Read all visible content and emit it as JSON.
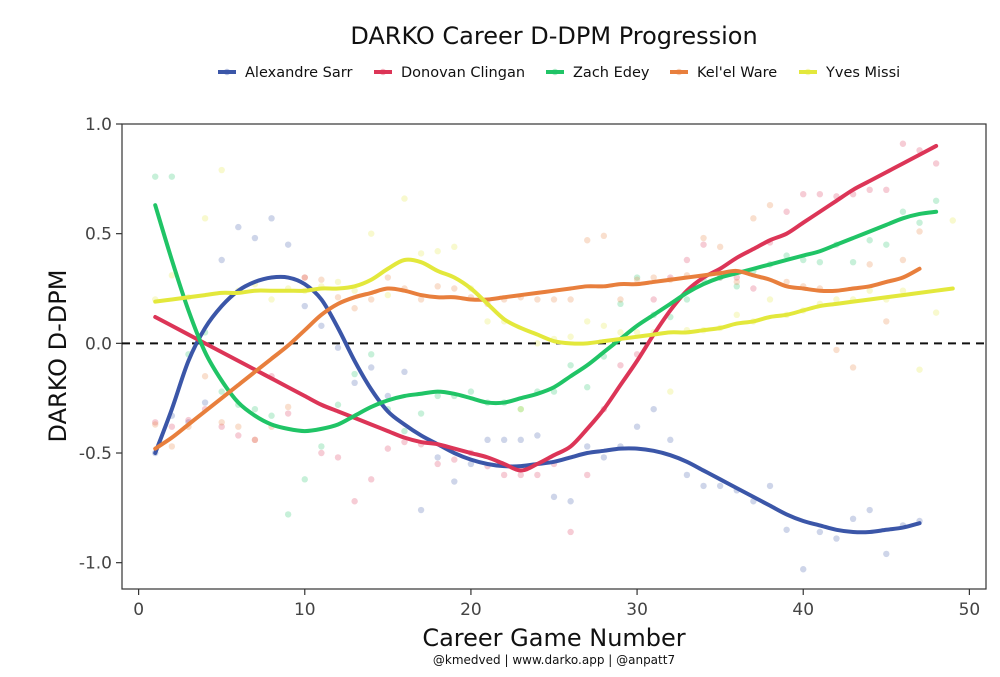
{
  "chart_data": {
    "type": "line",
    "title": "DARKO Career D-DPM Progression",
    "xlabel": "Career Game Number",
    "ylabel": "DARKO D-DPM",
    "caption": "@kmedved | www.darko.app | @anpatt7",
    "xlim": [
      -1,
      51
    ],
    "ylim": [
      -1.12,
      1.0
    ],
    "xticks": [
      0,
      10,
      20,
      30,
      40,
      50
    ],
    "xtick_labels": [
      "0",
      "10",
      "20",
      "30",
      "40",
      "50"
    ],
    "yticks": [
      -1.0,
      -0.5,
      0.0,
      0.5,
      1.0
    ],
    "ytick_labels": [
      "-1.0",
      "-0.5",
      "0.0",
      "0.5",
      "1.0"
    ],
    "reference_line_y": 0.0,
    "grid": false,
    "legend_position": "top",
    "series": [
      {
        "name": "Alexandre Sarr",
        "color": "#3b56a8",
        "x": [
          1,
          2,
          3,
          4,
          5,
          6,
          7,
          8,
          9,
          10,
          11,
          12,
          13,
          14,
          15,
          16,
          17,
          18,
          19,
          20,
          21,
          22,
          23,
          24,
          25,
          26,
          27,
          28,
          29,
          30,
          31,
          32,
          33,
          34,
          35,
          36,
          37,
          38,
          39,
          40,
          41,
          42,
          43,
          44,
          45,
          46,
          47
        ],
        "y": [
          -0.5,
          -0.3,
          -0.08,
          0.07,
          0.17,
          0.24,
          0.28,
          0.3,
          0.3,
          0.27,
          0.2,
          0.07,
          -0.08,
          -0.21,
          -0.31,
          -0.37,
          -0.42,
          -0.46,
          -0.5,
          -0.53,
          -0.55,
          -0.56,
          -0.56,
          -0.55,
          -0.54,
          -0.52,
          -0.5,
          -0.49,
          -0.48,
          -0.48,
          -0.49,
          -0.51,
          -0.54,
          -0.58,
          -0.62,
          -0.66,
          -0.7,
          -0.74,
          -0.78,
          -0.81,
          -0.83,
          -0.85,
          -0.86,
          -0.86,
          -0.85,
          -0.84,
          -0.82
        ],
        "points_x": [
          1,
          2,
          3,
          4,
          5,
          6,
          7,
          8,
          9,
          10,
          11,
          12,
          13,
          14,
          15,
          16,
          17,
          18,
          19,
          20,
          21,
          22,
          23,
          24,
          25,
          26,
          27,
          28,
          29,
          30,
          31,
          32,
          33,
          34,
          35,
          36,
          37,
          38,
          39,
          40,
          41,
          42,
          43,
          44,
          45,
          46,
          47
        ],
        "points_y": [
          -0.5,
          -0.33,
          -0.36,
          -0.27,
          0.38,
          0.53,
          0.48,
          0.57,
          0.45,
          0.17,
          0.08,
          -0.02,
          -0.18,
          -0.11,
          -0.24,
          -0.13,
          -0.76,
          -0.52,
          -0.63,
          -0.55,
          -0.44,
          -0.44,
          -0.44,
          -0.42,
          -0.7,
          -0.72,
          -0.47,
          -0.52,
          -0.47,
          -0.38,
          -0.3,
          -0.44,
          -0.6,
          -0.65,
          -0.65,
          -0.67,
          -0.72,
          -0.65,
          -0.85,
          -1.03,
          -0.86,
          -0.89,
          -0.8,
          -0.76,
          -0.96,
          -0.83,
          -0.81
        ]
      },
      {
        "name": "Donovan Clingan",
        "color": "#dc3557",
        "x": [
          1,
          2,
          3,
          4,
          5,
          6,
          7,
          8,
          9,
          10,
          11,
          12,
          13,
          14,
          15,
          16,
          17,
          18,
          19,
          20,
          21,
          22,
          23,
          24,
          25,
          26,
          27,
          28,
          29,
          30,
          31,
          32,
          33,
          34,
          35,
          36,
          37,
          38,
          39,
          40,
          41,
          42,
          43,
          44,
          45,
          46,
          47,
          48
        ],
        "y": [
          0.12,
          0.08,
          0.04,
          0.0,
          -0.04,
          -0.08,
          -0.12,
          -0.16,
          -0.2,
          -0.24,
          -0.28,
          -0.31,
          -0.34,
          -0.37,
          -0.4,
          -0.43,
          -0.45,
          -0.46,
          -0.48,
          -0.5,
          -0.52,
          -0.55,
          -0.58,
          -0.55,
          -0.51,
          -0.47,
          -0.39,
          -0.3,
          -0.19,
          -0.08,
          0.04,
          0.15,
          0.24,
          0.3,
          0.34,
          0.39,
          0.43,
          0.47,
          0.5,
          0.55,
          0.6,
          0.65,
          0.7,
          0.74,
          0.78,
          0.82,
          0.86,
          0.9
        ],
        "points_x": [
          1,
          2,
          3,
          4,
          5,
          6,
          7,
          8,
          9,
          10,
          11,
          12,
          13,
          14,
          15,
          16,
          17,
          18,
          19,
          20,
          21,
          22,
          23,
          24,
          25,
          26,
          27,
          28,
          29,
          30,
          31,
          32,
          33,
          34,
          35,
          36,
          37,
          38,
          39,
          40,
          41,
          42,
          43,
          44,
          45,
          46,
          47,
          48
        ],
        "points_y": [
          -0.36,
          -0.38,
          -0.35,
          -0.3,
          -0.38,
          -0.42,
          -0.44,
          -0.15,
          -0.32,
          0.3,
          -0.5,
          -0.52,
          -0.72,
          -0.62,
          -0.48,
          -0.45,
          -0.46,
          -0.55,
          -0.53,
          -0.5,
          -0.56,
          -0.6,
          -0.6,
          -0.6,
          -0.55,
          -0.86,
          -0.6,
          -0.3,
          -0.1,
          -0.05,
          0.2,
          0.3,
          0.38,
          0.45,
          0.3,
          0.3,
          0.25,
          0.46,
          0.6,
          0.68,
          0.68,
          0.67,
          0.68,
          0.7,
          0.7,
          0.91,
          0.88,
          0.82
        ]
      },
      {
        "name": "Zach Edey",
        "color": "#20c466",
        "x": [
          1,
          2,
          3,
          4,
          5,
          6,
          7,
          8,
          9,
          10,
          11,
          12,
          13,
          14,
          15,
          16,
          17,
          18,
          19,
          20,
          21,
          22,
          23,
          24,
          25,
          26,
          27,
          28,
          29,
          30,
          31,
          32,
          33,
          34,
          35,
          36,
          37,
          38,
          39,
          40,
          41,
          42,
          43,
          44,
          45,
          46,
          47,
          48
        ],
        "y": [
          0.63,
          0.38,
          0.15,
          -0.04,
          -0.17,
          -0.27,
          -0.33,
          -0.37,
          -0.39,
          -0.4,
          -0.39,
          -0.37,
          -0.33,
          -0.29,
          -0.26,
          -0.24,
          -0.23,
          -0.22,
          -0.23,
          -0.25,
          -0.27,
          -0.27,
          -0.25,
          -0.23,
          -0.2,
          -0.15,
          -0.1,
          -0.04,
          0.02,
          0.08,
          0.13,
          0.18,
          0.23,
          0.27,
          0.3,
          0.32,
          0.34,
          0.36,
          0.38,
          0.4,
          0.42,
          0.45,
          0.48,
          0.51,
          0.54,
          0.57,
          0.59,
          0.6
        ],
        "points_x": [
          1,
          2,
          3,
          4,
          5,
          6,
          7,
          8,
          9,
          10,
          11,
          12,
          13,
          14,
          15,
          16,
          17,
          18,
          19,
          20,
          21,
          22,
          23,
          24,
          25,
          26,
          27,
          28,
          29,
          30,
          31,
          32,
          33,
          34,
          35,
          36,
          37,
          38,
          39,
          40,
          41,
          42,
          43,
          44,
          45,
          46,
          47,
          48
        ],
        "points_y": [
          0.76,
          0.76,
          -0.05,
          0.05,
          -0.22,
          -0.28,
          -0.3,
          -0.33,
          -0.78,
          -0.62,
          -0.47,
          -0.28,
          -0.14,
          -0.05,
          -0.3,
          -0.4,
          -0.32,
          -0.24,
          -0.24,
          -0.22,
          -0.27,
          -0.27,
          -0.3,
          -0.22,
          -0.22,
          -0.1,
          -0.2,
          -0.06,
          0.18,
          0.3,
          0.13,
          0.12,
          0.2,
          0.29,
          0.3,
          0.26,
          0.33,
          0.36,
          0.4,
          0.38,
          0.37,
          0.45,
          0.37,
          0.47,
          0.45,
          0.6,
          0.55,
          0.65
        ]
      },
      {
        "name": "Kel'el Ware",
        "color": "#e87f3d",
        "x": [
          1,
          2,
          3,
          4,
          5,
          6,
          7,
          8,
          9,
          10,
          11,
          12,
          13,
          14,
          15,
          16,
          17,
          18,
          19,
          20,
          21,
          22,
          23,
          24,
          25,
          26,
          27,
          28,
          29,
          30,
          31,
          32,
          33,
          34,
          35,
          36,
          37,
          38,
          39,
          40,
          41,
          42,
          43,
          44,
          45,
          46,
          47
        ],
        "y": [
          -0.48,
          -0.43,
          -0.37,
          -0.31,
          -0.25,
          -0.19,
          -0.13,
          -0.07,
          -0.01,
          0.06,
          0.13,
          0.18,
          0.21,
          0.23,
          0.25,
          0.24,
          0.22,
          0.21,
          0.21,
          0.2,
          0.2,
          0.21,
          0.22,
          0.23,
          0.24,
          0.25,
          0.26,
          0.26,
          0.27,
          0.27,
          0.28,
          0.29,
          0.3,
          0.31,
          0.32,
          0.33,
          0.31,
          0.29,
          0.26,
          0.25,
          0.24,
          0.24,
          0.25,
          0.26,
          0.28,
          0.3,
          0.34
        ],
        "points_x": [
          1,
          2,
          3,
          4,
          5,
          6,
          7,
          8,
          9,
          10,
          11,
          12,
          13,
          14,
          15,
          16,
          17,
          18,
          19,
          20,
          21,
          22,
          23,
          24,
          25,
          26,
          27,
          28,
          29,
          30,
          31,
          32,
          33,
          34,
          35,
          36,
          37,
          38,
          39,
          40,
          41,
          42,
          43,
          44,
          45,
          46,
          47
        ],
        "points_y": [
          -0.37,
          -0.47,
          -0.38,
          -0.15,
          -0.36,
          -0.38,
          -0.44,
          -0.38,
          -0.29,
          0.3,
          0.29,
          0.21,
          0.16,
          0.2,
          0.3,
          0.25,
          0.2,
          0.26,
          0.25,
          0.21,
          0.18,
          0.2,
          0.21,
          0.2,
          0.2,
          0.2,
          0.47,
          0.49,
          0.2,
          0.29,
          0.3,
          0.29,
          0.31,
          0.48,
          0.44,
          0.28,
          0.57,
          0.63,
          0.28,
          0.26,
          0.25,
          -0.03,
          -0.11,
          0.36,
          0.1,
          0.38,
          0.51
        ]
      },
      {
        "name": "Yves Missi",
        "color": "#e3e83c",
        "x": [
          1,
          2,
          3,
          4,
          5,
          6,
          7,
          8,
          9,
          10,
          11,
          12,
          13,
          14,
          15,
          16,
          17,
          18,
          19,
          20,
          21,
          22,
          23,
          24,
          25,
          26,
          27,
          28,
          29,
          30,
          31,
          32,
          33,
          34,
          35,
          36,
          37,
          38,
          39,
          40,
          41,
          42,
          43,
          44,
          45,
          46,
          47,
          48,
          49
        ],
        "y": [
          0.19,
          0.2,
          0.21,
          0.22,
          0.23,
          0.23,
          0.24,
          0.24,
          0.24,
          0.24,
          0.25,
          0.25,
          0.26,
          0.29,
          0.34,
          0.38,
          0.37,
          0.33,
          0.3,
          0.25,
          0.18,
          0.11,
          0.07,
          0.04,
          0.01,
          0.0,
          0.0,
          0.01,
          0.02,
          0.03,
          0.04,
          0.05,
          0.05,
          0.06,
          0.07,
          0.09,
          0.1,
          0.12,
          0.13,
          0.15,
          0.17,
          0.18,
          0.19,
          0.2,
          0.21,
          0.22,
          0.23,
          0.24,
          0.25
        ],
        "points_x": [
          1,
          2,
          3,
          4,
          5,
          6,
          7,
          8,
          9,
          10,
          11,
          12,
          13,
          14,
          15,
          16,
          17,
          18,
          19,
          20,
          21,
          22,
          23,
          24,
          25,
          26,
          27,
          28,
          29,
          30,
          31,
          32,
          33,
          34,
          35,
          36,
          37,
          38,
          39,
          40,
          41,
          42,
          43,
          44,
          45,
          46,
          47,
          48,
          49
        ],
        "points_y": [
          0.2,
          0.31,
          0.21,
          0.57,
          0.79,
          0.24,
          0.27,
          0.2,
          0.25,
          0.24,
          0.26,
          0.28,
          0.24,
          0.5,
          0.22,
          0.66,
          0.41,
          0.42,
          0.44,
          0.25,
          0.1,
          0.1,
          -0.3,
          0.0,
          0.02,
          0.03,
          0.1,
          0.08,
          0.05,
          0.05,
          0.05,
          -0.22,
          0.06,
          0.06,
          0.07,
          0.13,
          0.1,
          0.2,
          0.13,
          0.15,
          0.18,
          0.2,
          0.2,
          0.24,
          0.2,
          0.24,
          -0.12,
          0.14,
          0.56
        ]
      }
    ]
  }
}
